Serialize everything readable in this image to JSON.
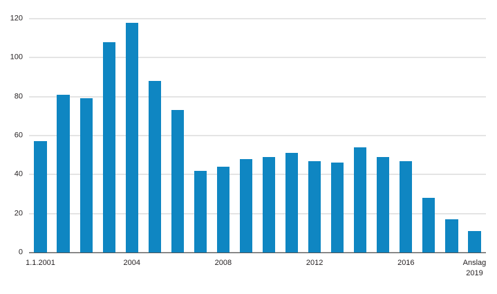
{
  "figure": {
    "background": "#ffffff"
  },
  "chart_data": {
    "type": "bar",
    "values": [
      57,
      81,
      79,
      108,
      118,
      88,
      73,
      42,
      44,
      48,
      49,
      51,
      47,
      46,
      54,
      49,
      47,
      28,
      17,
      11
    ],
    "x_ticks": [
      {
        "index": 0,
        "label": "1.1.2001"
      },
      {
        "index": 4,
        "label": "2004"
      },
      {
        "index": 8,
        "label": "2008"
      },
      {
        "index": 12,
        "label": "2012"
      },
      {
        "index": 16,
        "label": "2016"
      },
      {
        "index": 19,
        "label": "Anslag\n2019"
      }
    ],
    "y_ticks": [
      0,
      20,
      40,
      60,
      80,
      100,
      120
    ],
    "ylim": [
      0,
      120
    ],
    "title": "",
    "xlabel": "",
    "ylabel": "",
    "grid": "horizontal",
    "legend_position": "none",
    "bar_color": "#0f86c2",
    "gridline_color": "#c9c9c9",
    "axis_color": "#1a1a1a",
    "text_color": "#231f20"
  }
}
